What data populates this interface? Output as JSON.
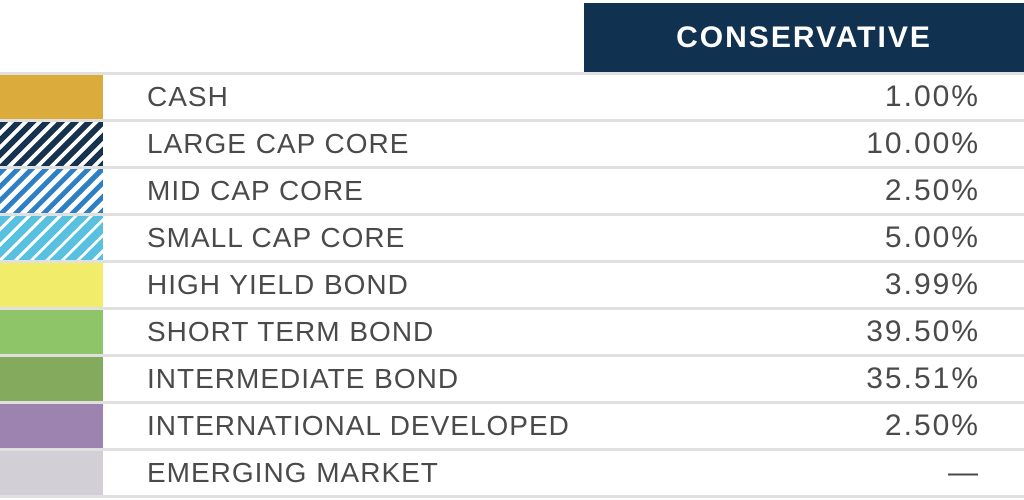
{
  "header": {
    "title": "CONSERVATIVE",
    "bg_color": "#113150",
    "text_color": "#ffffff"
  },
  "table": {
    "rows": [
      {
        "label": "CASH",
        "value": "1.00%",
        "swatch": "gold",
        "swatch_color": "#dbab3b",
        "swatch_pattern": "solid"
      },
      {
        "label": "LARGE CAP CORE",
        "value": "10.00%",
        "swatch": "navy-stripe",
        "swatch_color": "#16324f",
        "swatch_pattern": "diagonal-stripes-on-white"
      },
      {
        "label": "MID CAP CORE",
        "value": "2.50%",
        "swatch": "blue-stripe",
        "swatch_color": "#2e7fc3",
        "swatch_pattern": "diagonal-stripes-on-white"
      },
      {
        "label": "SMALL CAP CORE",
        "value": "5.00%",
        "swatch": "cyan-stripe",
        "swatch_color": "#57c1df",
        "swatch_pattern": "solid-with-white-diagonal-stripes"
      },
      {
        "label": "HIGH YIELD BOND",
        "value": "3.99%",
        "swatch": "yellow",
        "swatch_color": "#f2ec6b",
        "swatch_pattern": "solid"
      },
      {
        "label": "SHORT TERM BOND",
        "value": "39.50%",
        "swatch": "light-green",
        "swatch_color": "#8ec569",
        "swatch_pattern": "solid"
      },
      {
        "label": "INTERMEDIATE BOND",
        "value": "35.51%",
        "swatch": "olive-green",
        "swatch_color": "#84aa5d",
        "swatch_pattern": "solid"
      },
      {
        "label": "INTERNATIONAL DEVELOPED",
        "value": "2.50%",
        "swatch": "purple",
        "swatch_color": "#9d84b0",
        "swatch_pattern": "solid"
      },
      {
        "label": "EMERGING MARKET",
        "value": "—",
        "swatch": "lavender",
        "swatch_color": "#d3cfd7",
        "swatch_pattern": "solid"
      }
    ],
    "separator_color": "#e0e0e0",
    "text_color": "#4a4a4b"
  },
  "chart_data": {
    "type": "table",
    "title": "CONSERVATIVE",
    "categories": [
      "CASH",
      "LARGE CAP CORE",
      "MID CAP CORE",
      "SMALL CAP CORE",
      "HIGH YIELD BOND",
      "SHORT TERM BOND",
      "INTERMEDIATE BOND",
      "INTERNATIONAL DEVELOPED",
      "EMERGING MARKET"
    ],
    "series": [
      {
        "name": "CONSERVATIVE",
        "values": [
          1.0,
          10.0,
          2.5,
          5.0,
          3.99,
          39.5,
          35.51,
          2.5,
          null
        ],
        "display_values": [
          "1.00%",
          "10.00%",
          "2.50%",
          "5.00%",
          "3.99%",
          "39.50%",
          "35.51%",
          "2.50%",
          "—"
        ]
      }
    ],
    "legend_position": "left-swatch-column",
    "legend_colors": [
      "#dbab3b",
      "#16324f",
      "#2e7fc3",
      "#57c1df",
      "#f2ec6b",
      "#8ec569",
      "#84aa5d",
      "#9d84b0",
      "#d3cfd7"
    ]
  }
}
